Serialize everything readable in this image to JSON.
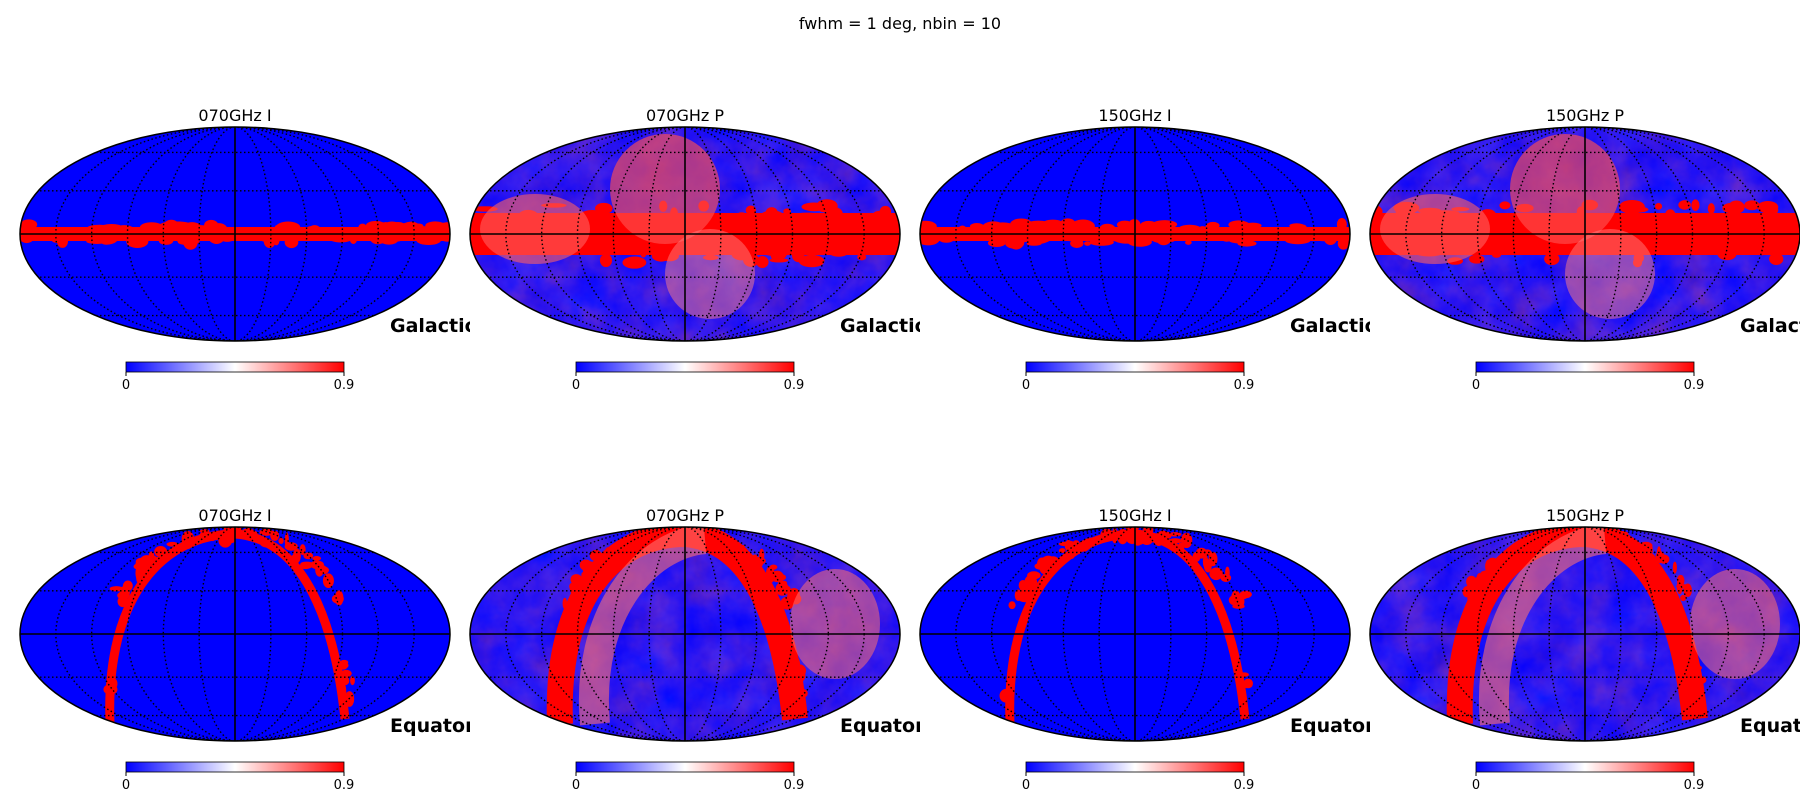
{
  "figure": {
    "title": "fwhm = 1 deg, nbin = 10"
  },
  "colors": {
    "low": "#0000ff",
    "mid": "#ffffff",
    "high": "#ff0000",
    "outline": "#000000"
  },
  "chart_data": [
    {
      "type": "heatmap",
      "projection": "Mollweide",
      "title": "070GHz I",
      "coord": "Galactic",
      "map": "intensity",
      "frequency": "070GHz",
      "stokes": "I",
      "colorbar": {
        "min": "0",
        "max": "0.9"
      },
      "range": [
        0,
        0.9
      ],
      "graticule": true
    },
    {
      "type": "heatmap",
      "projection": "Mollweide",
      "title": "070GHz P",
      "coord": "Galactic",
      "map": "polarization",
      "frequency": "070GHz",
      "stokes": "P",
      "colorbar": {
        "min": "0",
        "max": "0.9"
      },
      "range": [
        0,
        0.9
      ],
      "graticule": true
    },
    {
      "type": "heatmap",
      "projection": "Mollweide",
      "title": "150GHz I",
      "coord": "Galactic",
      "map": "intensity",
      "frequency": "150GHz",
      "stokes": "I",
      "colorbar": {
        "min": "0",
        "max": "0.9"
      },
      "range": [
        0,
        0.9
      ],
      "graticule": true
    },
    {
      "type": "heatmap",
      "projection": "Mollweide",
      "title": "150GHz P",
      "coord": "Galactic",
      "map": "polarization",
      "frequency": "150GHz",
      "stokes": "P",
      "colorbar": {
        "min": "0",
        "max": "0.9"
      },
      "range": [
        0,
        0.9
      ],
      "graticule": true
    },
    {
      "type": "heatmap",
      "projection": "Mollweide",
      "title": "070GHz I",
      "coord": "Equatorial",
      "map": "intensity",
      "frequency": "070GHz",
      "stokes": "I",
      "colorbar": {
        "min": "0",
        "max": "0.9"
      },
      "range": [
        0,
        0.9
      ],
      "graticule": true
    },
    {
      "type": "heatmap",
      "projection": "Mollweide",
      "title": "070GHz P",
      "coord": "Equatorial",
      "map": "polarization",
      "frequency": "070GHz",
      "stokes": "P",
      "colorbar": {
        "min": "0",
        "max": "0.9"
      },
      "range": [
        0,
        0.9
      ],
      "graticule": true
    },
    {
      "type": "heatmap",
      "projection": "Mollweide",
      "title": "150GHz I",
      "coord": "Equatorial",
      "map": "intensity",
      "frequency": "150GHz",
      "stokes": "I",
      "colorbar": {
        "min": "0",
        "max": "0.9"
      },
      "range": [
        0,
        0.9
      ],
      "graticule": true
    },
    {
      "type": "heatmap",
      "projection": "Mollweide",
      "title": "150GHz P",
      "coord": "Equatorial",
      "map": "polarization",
      "frequency": "150GHz",
      "stokes": "P",
      "colorbar": {
        "min": "0",
        "max": "0.9"
      },
      "range": [
        0,
        0.9
      ],
      "graticule": true
    }
  ]
}
